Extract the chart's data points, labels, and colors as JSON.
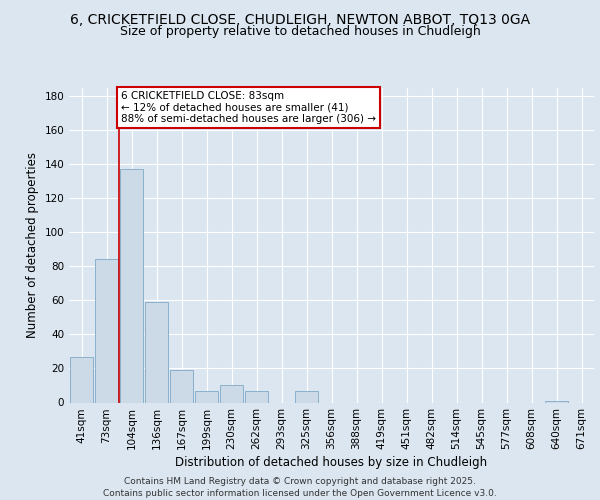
{
  "title_line1": "6, CRICKETFIELD CLOSE, CHUDLEIGH, NEWTON ABBOT, TQ13 0GA",
  "title_line2": "Size of property relative to detached houses in Chudleigh",
  "xlabel": "Distribution of detached houses by size in Chudleigh",
  "ylabel": "Number of detached properties",
  "categories": [
    "41sqm",
    "73sqm",
    "104sqm",
    "136sqm",
    "167sqm",
    "199sqm",
    "230sqm",
    "262sqm",
    "293sqm",
    "325sqm",
    "356sqm",
    "388sqm",
    "419sqm",
    "451sqm",
    "482sqm",
    "514sqm",
    "545sqm",
    "577sqm",
    "608sqm",
    "640sqm",
    "671sqm"
  ],
  "values": [
    27,
    84,
    137,
    59,
    19,
    7,
    10,
    7,
    0,
    7,
    0,
    0,
    0,
    0,
    0,
    0,
    0,
    0,
    0,
    1,
    0
  ],
  "bar_color": "#ccd9e6",
  "bar_edge_color": "#8ab0cc",
  "vline_x": 1.5,
  "vline_color": "#cc0000",
  "annotation_text": "6 CRICKETFIELD CLOSE: 83sqm\n← 12% of detached houses are smaller (41)\n88% of semi-detached houses are larger (306) →",
  "annotation_box_color": "#ffffff",
  "annotation_box_edge": "#cc0000",
  "ylim": [
    0,
    185
  ],
  "yticks": [
    0,
    20,
    40,
    60,
    80,
    100,
    120,
    140,
    160,
    180
  ],
  "background_color": "#dce6f0",
  "plot_bg_color": "#dce6f0",
  "fig_bg_color": "#dce6f0",
  "grid_color": "#ffffff",
  "footer": "Contains HM Land Registry data © Crown copyright and database right 2025.\nContains public sector information licensed under the Open Government Licence v3.0.",
  "title_fontsize": 10,
  "subtitle_fontsize": 9,
  "axis_label_fontsize": 8.5,
  "tick_fontsize": 7.5,
  "annotation_fontsize": 7.5,
  "footer_fontsize": 6.5
}
